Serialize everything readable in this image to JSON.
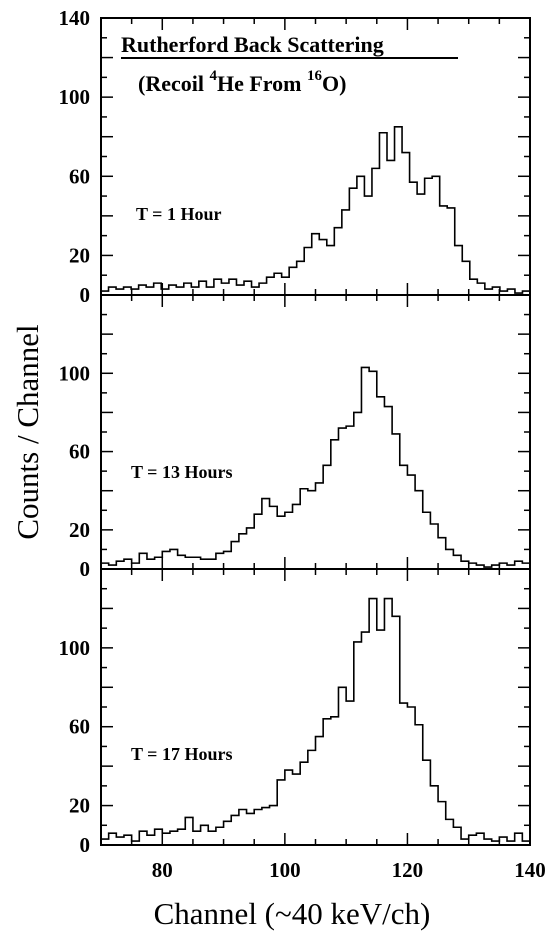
{
  "chart_data": {
    "type": "histogram",
    "title": "Rutherford Back Scattering",
    "subtitle": {
      "prefix": "(Recoil ",
      "sup1": "4",
      "middle": "He From ",
      "sup2": "16",
      "suffix": "O)"
    },
    "xlabel": "Channel (~40 keV/ch)",
    "ylabel": "Counts / Channel",
    "xlim": [
      70,
      140
    ],
    "x_ticks": [
      80,
      100,
      120,
      140
    ],
    "panels": [
      {
        "label": "T = 1 Hour",
        "ylim": [
          0,
          140
        ],
        "y_ticks": [
          0,
          20,
          60,
          100,
          140
        ],
        "x_start": 70,
        "values": [
          2,
          4,
          3,
          4,
          3,
          5,
          4,
          6,
          3,
          5,
          4,
          6,
          4,
          7,
          4,
          8,
          6,
          8,
          5,
          7,
          4,
          6,
          9,
          11,
          9,
          14,
          17,
          24,
          31,
          28,
          25,
          34,
          43,
          54,
          60,
          50,
          64,
          82,
          68,
          85,
          72,
          57,
          51,
          59,
          60,
          45,
          44,
          25,
          17,
          8,
          6,
          3,
          4,
          2,
          3,
          1,
          2
        ]
      },
      {
        "label": "T = 13 Hours",
        "ylim": [
          0,
          140
        ],
        "y_ticks": [
          0,
          20,
          60,
          100
        ],
        "x_start": 70,
        "values": [
          3,
          2,
          4,
          5,
          3,
          8,
          5,
          6,
          9,
          10,
          7,
          6,
          6,
          5,
          5,
          8,
          9,
          14,
          18,
          21,
          28,
          36,
          32,
          27,
          29,
          33,
          41,
          40,
          44,
          53,
          66,
          72,
          73,
          80,
          103,
          101,
          88,
          83,
          69,
          53,
          48,
          40,
          29,
          23,
          16,
          10,
          7,
          4,
          3,
          2,
          1,
          2,
          3,
          2,
          4,
          3
        ]
      },
      {
        "label": "T = 17 Hours",
        "ylim": [
          0,
          140
        ],
        "y_ticks": [
          0,
          20,
          60,
          100
        ],
        "x_start": 70,
        "values": [
          3,
          6,
          4,
          5,
          2,
          7,
          5,
          8,
          6,
          7,
          8,
          14,
          7,
          10,
          7,
          9,
          12,
          15,
          18,
          16,
          18,
          19,
          20,
          33,
          38,
          36,
          42,
          48,
          55,
          64,
          65,
          80,
          73,
          103,
          108,
          125,
          109,
          125,
          116,
          72,
          70,
          61,
          43,
          30,
          22,
          13,
          9,
          3,
          5,
          6,
          3,
          2,
          4,
          2,
          6,
          2
        ]
      }
    ]
  }
}
